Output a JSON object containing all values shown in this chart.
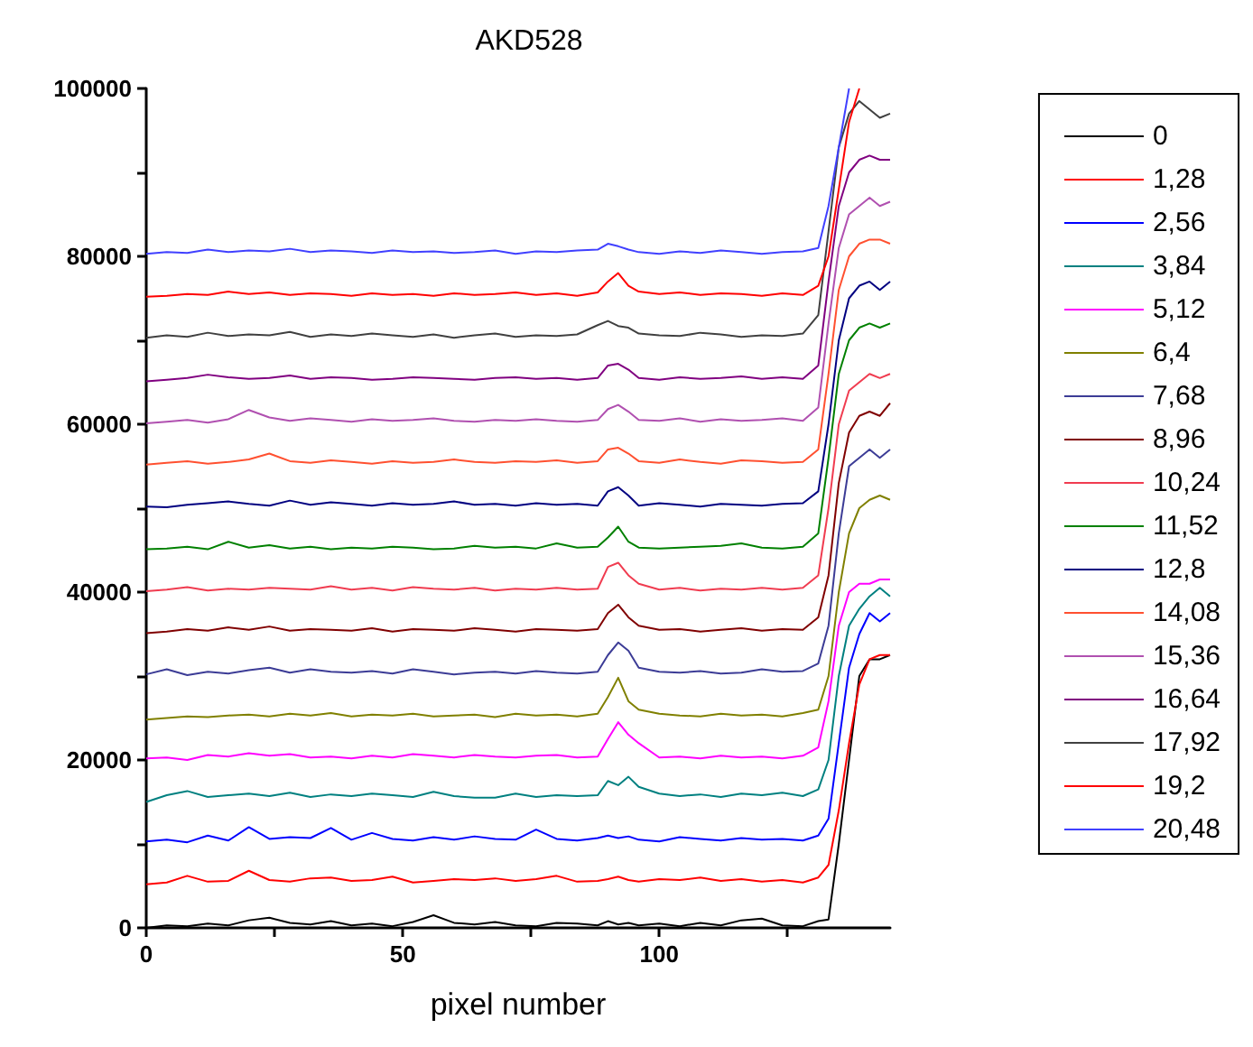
{
  "chart_data": {
    "type": "line",
    "title": "AKD528",
    "xlabel": "pixel number",
    "xlim": [
      0,
      145
    ],
    "xticks": [
      0,
      {
        "value": 25,
        "label": null
      },
      50,
      {
        "value": 75,
        "label": null
      },
      100,
      {
        "value": 125,
        "label": null
      }
    ],
    "ylim": [
      0,
      100000
    ],
    "yticks": [
      0,
      {
        "value": 10000,
        "label": null
      },
      20000,
      {
        "value": 30000,
        "label": null
      },
      40000,
      {
        "value": 50000,
        "label": null
      },
      60000,
      {
        "value": 70000,
        "label": null
      },
      80000,
      {
        "value": 90000,
        "label": null
      },
      100000
    ],
    "grid": false,
    "legend": "right",
    "line_style": "solid",
    "x": [
      0,
      4,
      8,
      12,
      16,
      20,
      24,
      28,
      32,
      36,
      40,
      44,
      48,
      52,
      56,
      60,
      64,
      68,
      72,
      76,
      80,
      84,
      88,
      90,
      92,
      94,
      96,
      100,
      104,
      108,
      112,
      116,
      120,
      124,
      128,
      131,
      133,
      135,
      137,
      139,
      141,
      143,
      145
    ],
    "series": [
      {
        "name": "0",
        "color": "#000000",
        "values": [
          0,
          300,
          200,
          500,
          300,
          900,
          1200,
          600,
          400,
          800,
          300,
          500,
          200,
          700,
          1500,
          600,
          400,
          700,
          300,
          200,
          600,
          500,
          300,
          800,
          400,
          600,
          300,
          500,
          200,
          600,
          300,
          900,
          1100,
          300,
          200,
          800,
          1000,
          10000,
          20000,
          30000,
          32000,
          32000,
          32500
        ]
      },
      {
        "name": "1,28",
        "color": "#ff0000",
        "values": [
          5200,
          5400,
          6200,
          5500,
          5600,
          6800,
          5700,
          5500,
          5900,
          6000,
          5600,
          5700,
          6100,
          5400,
          5600,
          5800,
          5700,
          5900,
          5600,
          5800,
          6200,
          5500,
          5600,
          5800,
          6100,
          5700,
          5500,
          5800,
          5700,
          6000,
          5600,
          5800,
          5500,
          5700,
          5400,
          6000,
          7500,
          14000,
          22000,
          29000,
          32000,
          32500,
          32500
        ]
      },
      {
        "name": "2,56",
        "color": "#0000ff",
        "values": [
          10300,
          10500,
          10200,
          11000,
          10400,
          12000,
          10600,
          10800,
          10700,
          11900,
          10500,
          11300,
          10600,
          10400,
          10800,
          10500,
          10900,
          10600,
          10500,
          11700,
          10600,
          10400,
          10700,
          11000,
          10700,
          10900,
          10500,
          10300,
          10800,
          10600,
          10400,
          10700,
          10500,
          10600,
          10400,
          11000,
          13000,
          22000,
          31000,
          35000,
          37500,
          36500,
          37500
        ]
      },
      {
        "name": "3,84",
        "color": "#008080",
        "values": [
          15000,
          15800,
          16300,
          15600,
          15800,
          16000,
          15700,
          16100,
          15600,
          15900,
          15700,
          16000,
          15800,
          15600,
          16200,
          15700,
          15500,
          15500,
          16000,
          15600,
          15800,
          15700,
          15800,
          17500,
          17000,
          18000,
          16800,
          16000,
          15700,
          15900,
          15600,
          16000,
          15800,
          16100,
          15700,
          16500,
          20000,
          30000,
          36000,
          38000,
          39500,
          40500,
          39500
        ]
      },
      {
        "name": "5,12",
        "color": "#ff00ff",
        "values": [
          20200,
          20300,
          20000,
          20600,
          20400,
          20800,
          20500,
          20700,
          20300,
          20400,
          20200,
          20500,
          20300,
          20700,
          20500,
          20300,
          20600,
          20400,
          20300,
          20500,
          20600,
          20300,
          20400,
          22500,
          24500,
          23000,
          22000,
          20300,
          20400,
          20200,
          20500,
          20300,
          20400,
          20200,
          20500,
          21500,
          27000,
          36000,
          40000,
          41000,
          41000,
          41500,
          41500
        ]
      },
      {
        "name": "6,4",
        "color": "#808000",
        "values": [
          24800,
          25000,
          25200,
          25100,
          25300,
          25400,
          25200,
          25500,
          25300,
          25600,
          25200,
          25400,
          25300,
          25500,
          25200,
          25300,
          25400,
          25100,
          25500,
          25300,
          25400,
          25200,
          25500,
          27500,
          29800,
          27000,
          26000,
          25500,
          25300,
          25200,
          25500,
          25300,
          25400,
          25200,
          25600,
          26000,
          30000,
          40000,
          47000,
          50000,
          51000,
          51500,
          51000
        ]
      },
      {
        "name": "7,68",
        "color": "#3c3c96",
        "values": [
          30200,
          30800,
          30100,
          30500,
          30300,
          30700,
          31000,
          30400,
          30800,
          30500,
          30400,
          30600,
          30300,
          30800,
          30500,
          30200,
          30400,
          30500,
          30300,
          30600,
          30400,
          30300,
          30500,
          32500,
          34000,
          33000,
          31000,
          30500,
          30400,
          30600,
          30300,
          30400,
          30800,
          30500,
          30600,
          31500,
          36000,
          47000,
          55000,
          56000,
          57000,
          56000,
          57000
        ]
      },
      {
        "name": "8,96",
        "color": "#800000",
        "values": [
          35100,
          35300,
          35600,
          35400,
          35800,
          35500,
          35900,
          35400,
          35600,
          35500,
          35400,
          35700,
          35300,
          35600,
          35500,
          35400,
          35700,
          35500,
          35300,
          35600,
          35500,
          35400,
          35600,
          37500,
          38500,
          37000,
          36000,
          35500,
          35600,
          35300,
          35500,
          35700,
          35400,
          35600,
          35500,
          37000,
          42000,
          53000,
          59000,
          61000,
          61500,
          61000,
          62500
        ]
      },
      {
        "name": "10,24",
        "color": "#f03c50",
        "values": [
          40100,
          40300,
          40600,
          40200,
          40400,
          40300,
          40500,
          40400,
          40300,
          40700,
          40300,
          40500,
          40200,
          40600,
          40400,
          40300,
          40500,
          40200,
          40400,
          40300,
          40500,
          40300,
          40400,
          43000,
          43500,
          42000,
          41000,
          40300,
          40500,
          40200,
          40400,
          40300,
          40500,
          40300,
          40500,
          42000,
          50000,
          60000,
          64000,
          65000,
          66000,
          65500,
          66000
        ]
      },
      {
        "name": "11,52",
        "color": "#008000",
        "values": [
          45100,
          45200,
          45400,
          45100,
          46000,
          45300,
          45600,
          45200,
          45400,
          45100,
          45300,
          45200,
          45400,
          45300,
          45100,
          45200,
          45500,
          45300,
          45400,
          45200,
          45800,
          45300,
          45400,
          46500,
          47800,
          46000,
          45300,
          45200,
          45300,
          45400,
          45500,
          45800,
          45300,
          45200,
          45400,
          47000,
          56000,
          66000,
          70000,
          71500,
          72000,
          71500,
          72000
        ]
      },
      {
        "name": "12,8",
        "color": "#000080",
        "values": [
          50200,
          50100,
          50400,
          50600,
          50800,
          50500,
          50300,
          50900,
          50400,
          50700,
          50500,
          50300,
          50600,
          50400,
          50500,
          50800,
          50400,
          50500,
          50300,
          50600,
          50400,
          50500,
          50300,
          52000,
          52500,
          51500,
          50300,
          50600,
          50400,
          50200,
          50500,
          50400,
          50300,
          50500,
          50600,
          52000,
          60000,
          70000,
          75000,
          76500,
          77000,
          76000,
          77000
        ]
      },
      {
        "name": "14,08",
        "color": "#ff5030",
        "values": [
          55200,
          55400,
          55600,
          55300,
          55500,
          55800,
          56500,
          55600,
          55400,
          55700,
          55500,
          55300,
          55600,
          55400,
          55500,
          55800,
          55500,
          55400,
          55600,
          55500,
          55700,
          55400,
          55600,
          57000,
          57200,
          56500,
          55600,
          55400,
          55800,
          55500,
          55300,
          55700,
          55600,
          55400,
          55500,
          57000,
          66000,
          76000,
          80000,
          81500,
          82000,
          82000,
          81500
        ]
      },
      {
        "name": "15,36",
        "color": "#b050b0",
        "values": [
          60100,
          60300,
          60500,
          60200,
          60600,
          61700,
          60800,
          60400,
          60700,
          60500,
          60300,
          60600,
          60400,
          60500,
          60700,
          60400,
          60300,
          60500,
          60400,
          60600,
          60400,
          60300,
          60500,
          61800,
          62300,
          61500,
          60500,
          60400,
          60700,
          60300,
          60600,
          60400,
          60500,
          60700,
          60400,
          62000,
          72000,
          81000,
          85000,
          86000,
          87000,
          86000,
          86500
        ]
      },
      {
        "name": "16,64",
        "color": "#800080",
        "values": [
          65100,
          65300,
          65500,
          65900,
          65600,
          65400,
          65500,
          65800,
          65400,
          65600,
          65500,
          65300,
          65400,
          65600,
          65500,
          65400,
          65300,
          65500,
          65600,
          65400,
          65500,
          65300,
          65500,
          67000,
          67200,
          66500,
          65500,
          65300,
          65600,
          65400,
          65500,
          65700,
          65400,
          65600,
          65400,
          67000,
          77000,
          86000,
          90000,
          91500,
          92000,
          91500,
          91500
        ]
      },
      {
        "name": "17,92",
        "color": "#404040",
        "values": [
          70300,
          70600,
          70400,
          70900,
          70500,
          70700,
          70600,
          71000,
          70400,
          70700,
          70500,
          70800,
          70600,
          70400,
          70700,
          70300,
          70600,
          70800,
          70400,
          70600,
          70500,
          70700,
          71800,
          72300,
          71700,
          71500,
          70800,
          70600,
          70500,
          70900,
          70700,
          70400,
          70600,
          70500,
          70800,
          73000,
          83000,
          93000,
          97000,
          98500,
          97500,
          96500,
          97000
        ]
      },
      {
        "name": "19,2",
        "color": "#ff0000",
        "values": [
          75200,
          75300,
          75500,
          75400,
          75800,
          75500,
          75700,
          75400,
          75600,
          75500,
          75300,
          75600,
          75400,
          75500,
          75300,
          75600,
          75400,
          75500,
          75700,
          75400,
          75600,
          75300,
          75700,
          77000,
          78000,
          76500,
          75800,
          75500,
          75700,
          75400,
          75600,
          75500,
          75300,
          75600,
          75400,
          76500,
          80000,
          88000,
          96000,
          100000,
          null,
          null,
          null
        ]
      },
      {
        "name": "20,48",
        "color": "#4040ff",
        "values": [
          80300,
          80500,
          80400,
          80800,
          80500,
          80700,
          80600,
          80900,
          80500,
          80700,
          80600,
          80400,
          80700,
          80500,
          80600,
          80400,
          80500,
          80700,
          80300,
          80600,
          80500,
          80700,
          80800,
          81500,
          81200,
          80800,
          80500,
          80300,
          80600,
          80400,
          80700,
          80500,
          80300,
          80500,
          80600,
          81000,
          86000,
          93000,
          100000,
          null,
          null,
          null,
          null
        ]
      }
    ]
  }
}
